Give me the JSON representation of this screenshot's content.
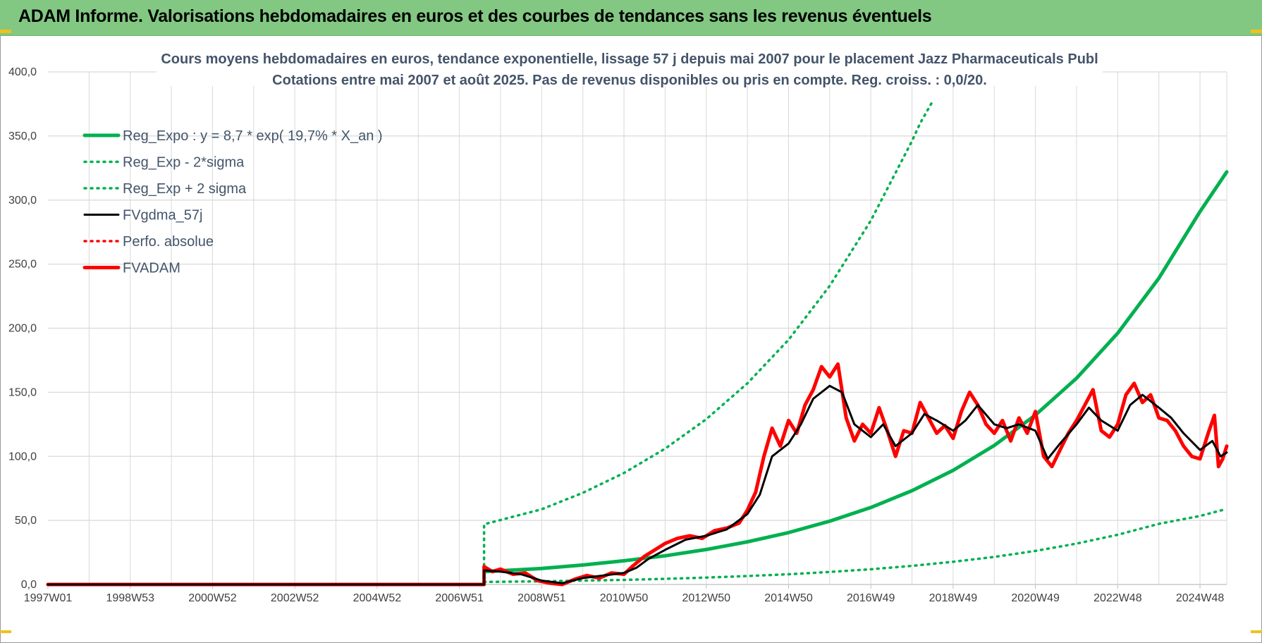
{
  "header": {
    "title": "ADAM Informe. Valorisations hebdomadaires en euros et des courbes de tendances sans les revenus éventuels"
  },
  "colors": {
    "banner": "#82c882",
    "reg_expo": "#00b050",
    "fvgdma": "#000000",
    "fvadam": "#ff0000",
    "title_text": "#44546a",
    "grid": "#d9d9d9"
  },
  "chart_data": {
    "type": "line",
    "title": "Cours moyens hebdomadaires en euros, tendance exponentielle, lissage 57 j depuis mai 2007 pour le placement Jazz Pharmaceuticals Publ",
    "subtitle": "Cotations entre mai 2007 et août 2025.  Pas de revenus disponibles ou pris en compte. Reg. croiss. : 0,0/20.",
    "xlabel": "",
    "ylabel": "",
    "ylim": [
      0,
      400
    ],
    "yticks": [
      "0,0",
      "50,0",
      "100,0",
      "150,0",
      "200,0",
      "250,0",
      "300,0",
      "350,0",
      "400,0"
    ],
    "xlim": [
      1997.0,
      2025.65
    ],
    "xticks": [
      {
        "x": 1997.0,
        "label": "1997W01"
      },
      {
        "x": 1999.0,
        "label": "1998W53"
      },
      {
        "x": 2001.0,
        "label": "2000W52"
      },
      {
        "x": 2003.0,
        "label": "2002W52"
      },
      {
        "x": 2005.0,
        "label": "2004W52"
      },
      {
        "x": 2007.0,
        "label": "2006W51"
      },
      {
        "x": 2009.0,
        "label": "2008W51"
      },
      {
        "x": 2011.0,
        "label": "2010W50"
      },
      {
        "x": 2013.0,
        "label": "2012W50"
      },
      {
        "x": 2015.0,
        "label": "2014W50"
      },
      {
        "x": 2017.0,
        "label": "2016W49"
      },
      {
        "x": 2019.0,
        "label": "2018W49"
      },
      {
        "x": 2021.0,
        "label": "2020W49"
      },
      {
        "x": 2023.0,
        "label": "2022W48"
      },
      {
        "x": 2025.0,
        "label": "2024W48"
      }
    ],
    "grid": true,
    "legend_position": "top-left",
    "series": [
      {
        "name": "Reg_Expo : y = 8,7 * exp( 19,7% *  X_an )",
        "style": "solid-thick",
        "color": "#00b050",
        "points": [
          [
            1997.0,
            0
          ],
          [
            2007.6,
            0
          ],
          [
            2007.6,
            10.0
          ],
          [
            2009.0,
            12.5
          ],
          [
            2010.0,
            15.2
          ],
          [
            2011.0,
            18.5
          ],
          [
            2012.0,
            22.4
          ],
          [
            2013.0,
            27.3
          ],
          [
            2014.0,
            33.3
          ],
          [
            2015.0,
            40.5
          ],
          [
            2016.0,
            49.4
          ],
          [
            2017.0,
            60.1
          ],
          [
            2018.0,
            73.2
          ],
          [
            2019.0,
            89.1
          ],
          [
            2020.0,
            108.5
          ],
          [
            2021.0,
            132.2
          ],
          [
            2022.0,
            161.0
          ],
          [
            2023.0,
            196.1
          ],
          [
            2024.0,
            239.0
          ],
          [
            2025.0,
            291.0
          ],
          [
            2025.65,
            322.0
          ]
        ]
      },
      {
        "name": "Reg_Exp - 2*sigma",
        "style": "dotted",
        "color": "#00b050",
        "points": [
          [
            2007.6,
            2.0
          ],
          [
            2009.0,
            2.5
          ],
          [
            2010.0,
            3.0
          ],
          [
            2011.0,
            3.6
          ],
          [
            2012.0,
            4.4
          ],
          [
            2013.0,
            5.4
          ],
          [
            2014.0,
            6.6
          ],
          [
            2015.0,
            8.0
          ],
          [
            2016.0,
            9.8
          ],
          [
            2017.0,
            11.9
          ],
          [
            2018.0,
            14.5
          ],
          [
            2019.0,
            17.7
          ],
          [
            2020.0,
            21.5
          ],
          [
            2021.0,
            26.2
          ],
          [
            2022.0,
            31.9
          ],
          [
            2023.0,
            38.8
          ],
          [
            2024.0,
            47.3
          ],
          [
            2025.0,
            53.5
          ],
          [
            2025.65,
            59.0
          ]
        ]
      },
      {
        "name": "Reg_Exp + 2 sigma",
        "style": "dotted",
        "color": "#00b050",
        "points": [
          [
            2007.6,
            0
          ],
          [
            2007.6,
            47.0
          ],
          [
            2009.0,
            58.7
          ],
          [
            2010.0,
            71.5
          ],
          [
            2011.0,
            87.0
          ],
          [
            2012.0,
            106.0
          ],
          [
            2013.0,
            129.0
          ],
          [
            2014.0,
            157.0
          ],
          [
            2015.0,
            191.0
          ],
          [
            2016.0,
            233.0
          ],
          [
            2017.0,
            284.0
          ],
          [
            2018.0,
            346.0
          ],
          [
            2018.2,
            360.0
          ],
          [
            2018.5,
            377.0
          ]
        ]
      },
      {
        "name": "FVgdma_57j",
        "style": "solid",
        "color": "#000000",
        "points": [
          [
            1997.0,
            0
          ],
          [
            2007.6,
            0
          ],
          [
            2007.6,
            11
          ],
          [
            2008.0,
            10
          ],
          [
            2008.5,
            8
          ],
          [
            2009.0,
            3
          ],
          [
            2009.5,
            1
          ],
          [
            2010.0,
            5
          ],
          [
            2010.5,
            7
          ],
          [
            2011.0,
            9
          ],
          [
            2011.3,
            13
          ],
          [
            2011.6,
            20
          ],
          [
            2012.0,
            27
          ],
          [
            2012.5,
            35
          ],
          [
            2013.0,
            38
          ],
          [
            2013.5,
            43
          ],
          [
            2014.0,
            55
          ],
          [
            2014.3,
            70
          ],
          [
            2014.6,
            100
          ],
          [
            2015.0,
            110
          ],
          [
            2015.3,
            125
          ],
          [
            2015.6,
            145
          ],
          [
            2016.0,
            155
          ],
          [
            2016.3,
            150
          ],
          [
            2016.6,
            125
          ],
          [
            2017.0,
            115
          ],
          [
            2017.3,
            125
          ],
          [
            2017.6,
            108
          ],
          [
            2018.0,
            118
          ],
          [
            2018.3,
            133
          ],
          [
            2018.6,
            128
          ],
          [
            2019.0,
            120
          ],
          [
            2019.3,
            128
          ],
          [
            2019.6,
            140
          ],
          [
            2020.0,
            125
          ],
          [
            2020.3,
            122
          ],
          [
            2020.6,
            125
          ],
          [
            2021.0,
            120
          ],
          [
            2021.3,
            98
          ],
          [
            2021.6,
            110
          ],
          [
            2022.0,
            125
          ],
          [
            2022.3,
            138
          ],
          [
            2022.6,
            128
          ],
          [
            2023.0,
            120
          ],
          [
            2023.3,
            140
          ],
          [
            2023.6,
            148
          ],
          [
            2024.0,
            138
          ],
          [
            2024.3,
            130
          ],
          [
            2024.6,
            118
          ],
          [
            2025.0,
            105
          ],
          [
            2025.3,
            112
          ],
          [
            2025.5,
            100
          ],
          [
            2025.65,
            103
          ]
        ]
      },
      {
        "name": "Perfo. absolue",
        "style": "dotted",
        "color": "#ff0000",
        "points": []
      },
      {
        "name": "FVADAM",
        "style": "solid-thick",
        "color": "#ff0000",
        "points": [
          [
            1997.0,
            0
          ],
          [
            2007.6,
            0
          ],
          [
            2007.6,
            14
          ],
          [
            2007.8,
            10
          ],
          [
            2008.0,
            12
          ],
          [
            2008.3,
            8
          ],
          [
            2008.6,
            9
          ],
          [
            2008.9,
            3
          ],
          [
            2009.2,
            1
          ],
          [
            2009.5,
            0
          ],
          [
            2009.8,
            4
          ],
          [
            2010.1,
            7
          ],
          [
            2010.4,
            5
          ],
          [
            2010.7,
            9
          ],
          [
            2011.0,
            8
          ],
          [
            2011.2,
            14
          ],
          [
            2011.5,
            22
          ],
          [
            2011.8,
            28
          ],
          [
            2012.0,
            32
          ],
          [
            2012.3,
            36
          ],
          [
            2012.6,
            38
          ],
          [
            2012.9,
            36
          ],
          [
            2013.2,
            42
          ],
          [
            2013.5,
            44
          ],
          [
            2013.8,
            48
          ],
          [
            2014.0,
            58
          ],
          [
            2014.2,
            72
          ],
          [
            2014.4,
            100
          ],
          [
            2014.6,
            122
          ],
          [
            2014.8,
            108
          ],
          [
            2015.0,
            128
          ],
          [
            2015.2,
            118
          ],
          [
            2015.4,
            140
          ],
          [
            2015.6,
            152
          ],
          [
            2015.8,
            170
          ],
          [
            2016.0,
            162
          ],
          [
            2016.2,
            172
          ],
          [
            2016.4,
            130
          ],
          [
            2016.6,
            112
          ],
          [
            2016.8,
            125
          ],
          [
            2017.0,
            118
          ],
          [
            2017.2,
            138
          ],
          [
            2017.4,
            120
          ],
          [
            2017.6,
            100
          ],
          [
            2017.8,
            120
          ],
          [
            2018.0,
            118
          ],
          [
            2018.2,
            142
          ],
          [
            2018.4,
            130
          ],
          [
            2018.6,
            118
          ],
          [
            2018.8,
            124
          ],
          [
            2019.0,
            114
          ],
          [
            2019.2,
            135
          ],
          [
            2019.4,
            150
          ],
          [
            2019.6,
            140
          ],
          [
            2019.8,
            125
          ],
          [
            2020.0,
            118
          ],
          [
            2020.2,
            128
          ],
          [
            2020.4,
            112
          ],
          [
            2020.6,
            130
          ],
          [
            2020.8,
            118
          ],
          [
            2021.0,
            135
          ],
          [
            2021.2,
            100
          ],
          [
            2021.4,
            92
          ],
          [
            2021.6,
            105
          ],
          [
            2021.8,
            118
          ],
          [
            2022.0,
            128
          ],
          [
            2022.2,
            140
          ],
          [
            2022.4,
            152
          ],
          [
            2022.6,
            120
          ],
          [
            2022.8,
            115
          ],
          [
            2023.0,
            125
          ],
          [
            2023.2,
            148
          ],
          [
            2023.4,
            157
          ],
          [
            2023.6,
            142
          ],
          [
            2023.8,
            148
          ],
          [
            2024.0,
            130
          ],
          [
            2024.2,
            128
          ],
          [
            2024.4,
            120
          ],
          [
            2024.6,
            108
          ],
          [
            2024.8,
            100
          ],
          [
            2025.0,
            98
          ],
          [
            2025.2,
            118
          ],
          [
            2025.35,
            132
          ],
          [
            2025.45,
            92
          ],
          [
            2025.55,
            98
          ],
          [
            2025.65,
            108
          ]
        ]
      }
    ]
  }
}
